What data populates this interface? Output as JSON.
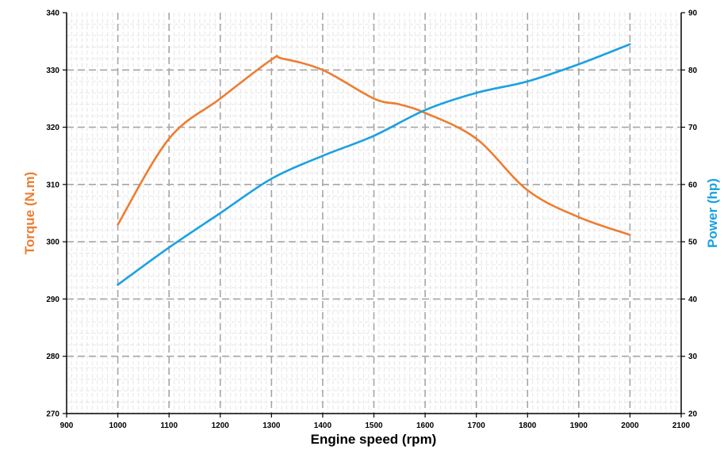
{
  "chart_data": {
    "type": "line",
    "xlabel": "Engine speed (rpm)",
    "ylabel_left": "Torque (N.m)",
    "ylabel_right": "Power (hp)",
    "xlim": [
      900,
      2100
    ],
    "ylim_left": [
      270,
      340
    ],
    "ylim_right": [
      20,
      90
    ],
    "x_ticks": [
      "900",
      "1000",
      "1100",
      "1200",
      "1300",
      "1400",
      "1500",
      "1600",
      "1700",
      "1800",
      "1900",
      "2000",
      "2100"
    ],
    "y_left_ticks": [
      "270",
      "280",
      "290",
      "300",
      "310",
      "320",
      "330",
      "340"
    ],
    "y_right_ticks": [
      "20",
      "30",
      "40",
      "50",
      "60",
      "70",
      "80",
      "90"
    ],
    "grid": true,
    "series": [
      {
        "axis": "left",
        "color": "#ED7D31",
        "x": [
          1000,
          1100,
          1200,
          1300,
          1320,
          1400,
          1500,
          1550,
          1600,
          1700,
          1800,
          1900,
          2000
        ],
        "y": [
          303,
          318,
          325,
          331.8,
          332,
          330,
          325,
          324,
          322.5,
          318,
          309,
          304.3,
          301.2
        ]
      },
      {
        "axis": "right",
        "color": "#1BA1E2",
        "x": [
          1000,
          1100,
          1200,
          1300,
          1400,
          1500,
          1600,
          1700,
          1800,
          1900,
          2000
        ],
        "y": [
          42.5,
          49,
          55,
          61,
          65,
          68.5,
          73,
          76,
          78,
          81,
          84.5
        ]
      }
    ]
  }
}
